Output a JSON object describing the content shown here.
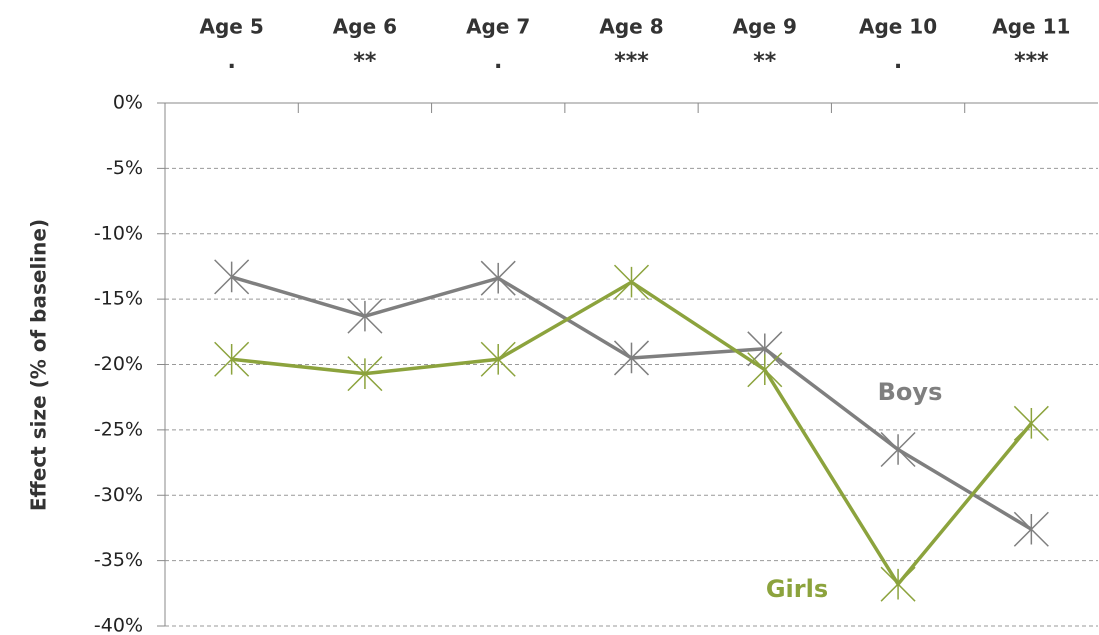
{
  "chart_data": {
    "type": "line",
    "y_label": "Effect size (% of baseline)",
    "categories": [
      "Age 5",
      "Age 6",
      "Age 7",
      "Age 8",
      "Age 9",
      "Age 10",
      "Age 11"
    ],
    "significance": [
      ".",
      "**",
      ".",
      "***",
      "**",
      ".",
      "***"
    ],
    "series": [
      {
        "name": "Boys",
        "color": "#7f7f7f",
        "values": [
          -13.3,
          -16.3,
          -13.4,
          -19.5,
          -18.8,
          -26.5,
          -32.6
        ]
      },
      {
        "name": "Girls",
        "color": "#8ca33d",
        "values": [
          -19.6,
          -20.7,
          -19.6,
          -13.7,
          -20.4,
          -36.8,
          -24.5
        ]
      }
    ],
    "ylim": [
      -40,
      0
    ],
    "yticks": [
      {
        "value": 0,
        "label": "0%"
      },
      {
        "value": -5,
        "label": "-5%"
      },
      {
        "value": -10,
        "label": "-10%"
      },
      {
        "value": -15,
        "label": "-15%"
      },
      {
        "value": -20,
        "label": "-20%"
      },
      {
        "value": -25,
        "label": "-25%"
      },
      {
        "value": -30,
        "label": "-30%"
      },
      {
        "value": -35,
        "label": "-35%"
      },
      {
        "value": -40,
        "label": "-40%"
      }
    ],
    "grid": true
  }
}
